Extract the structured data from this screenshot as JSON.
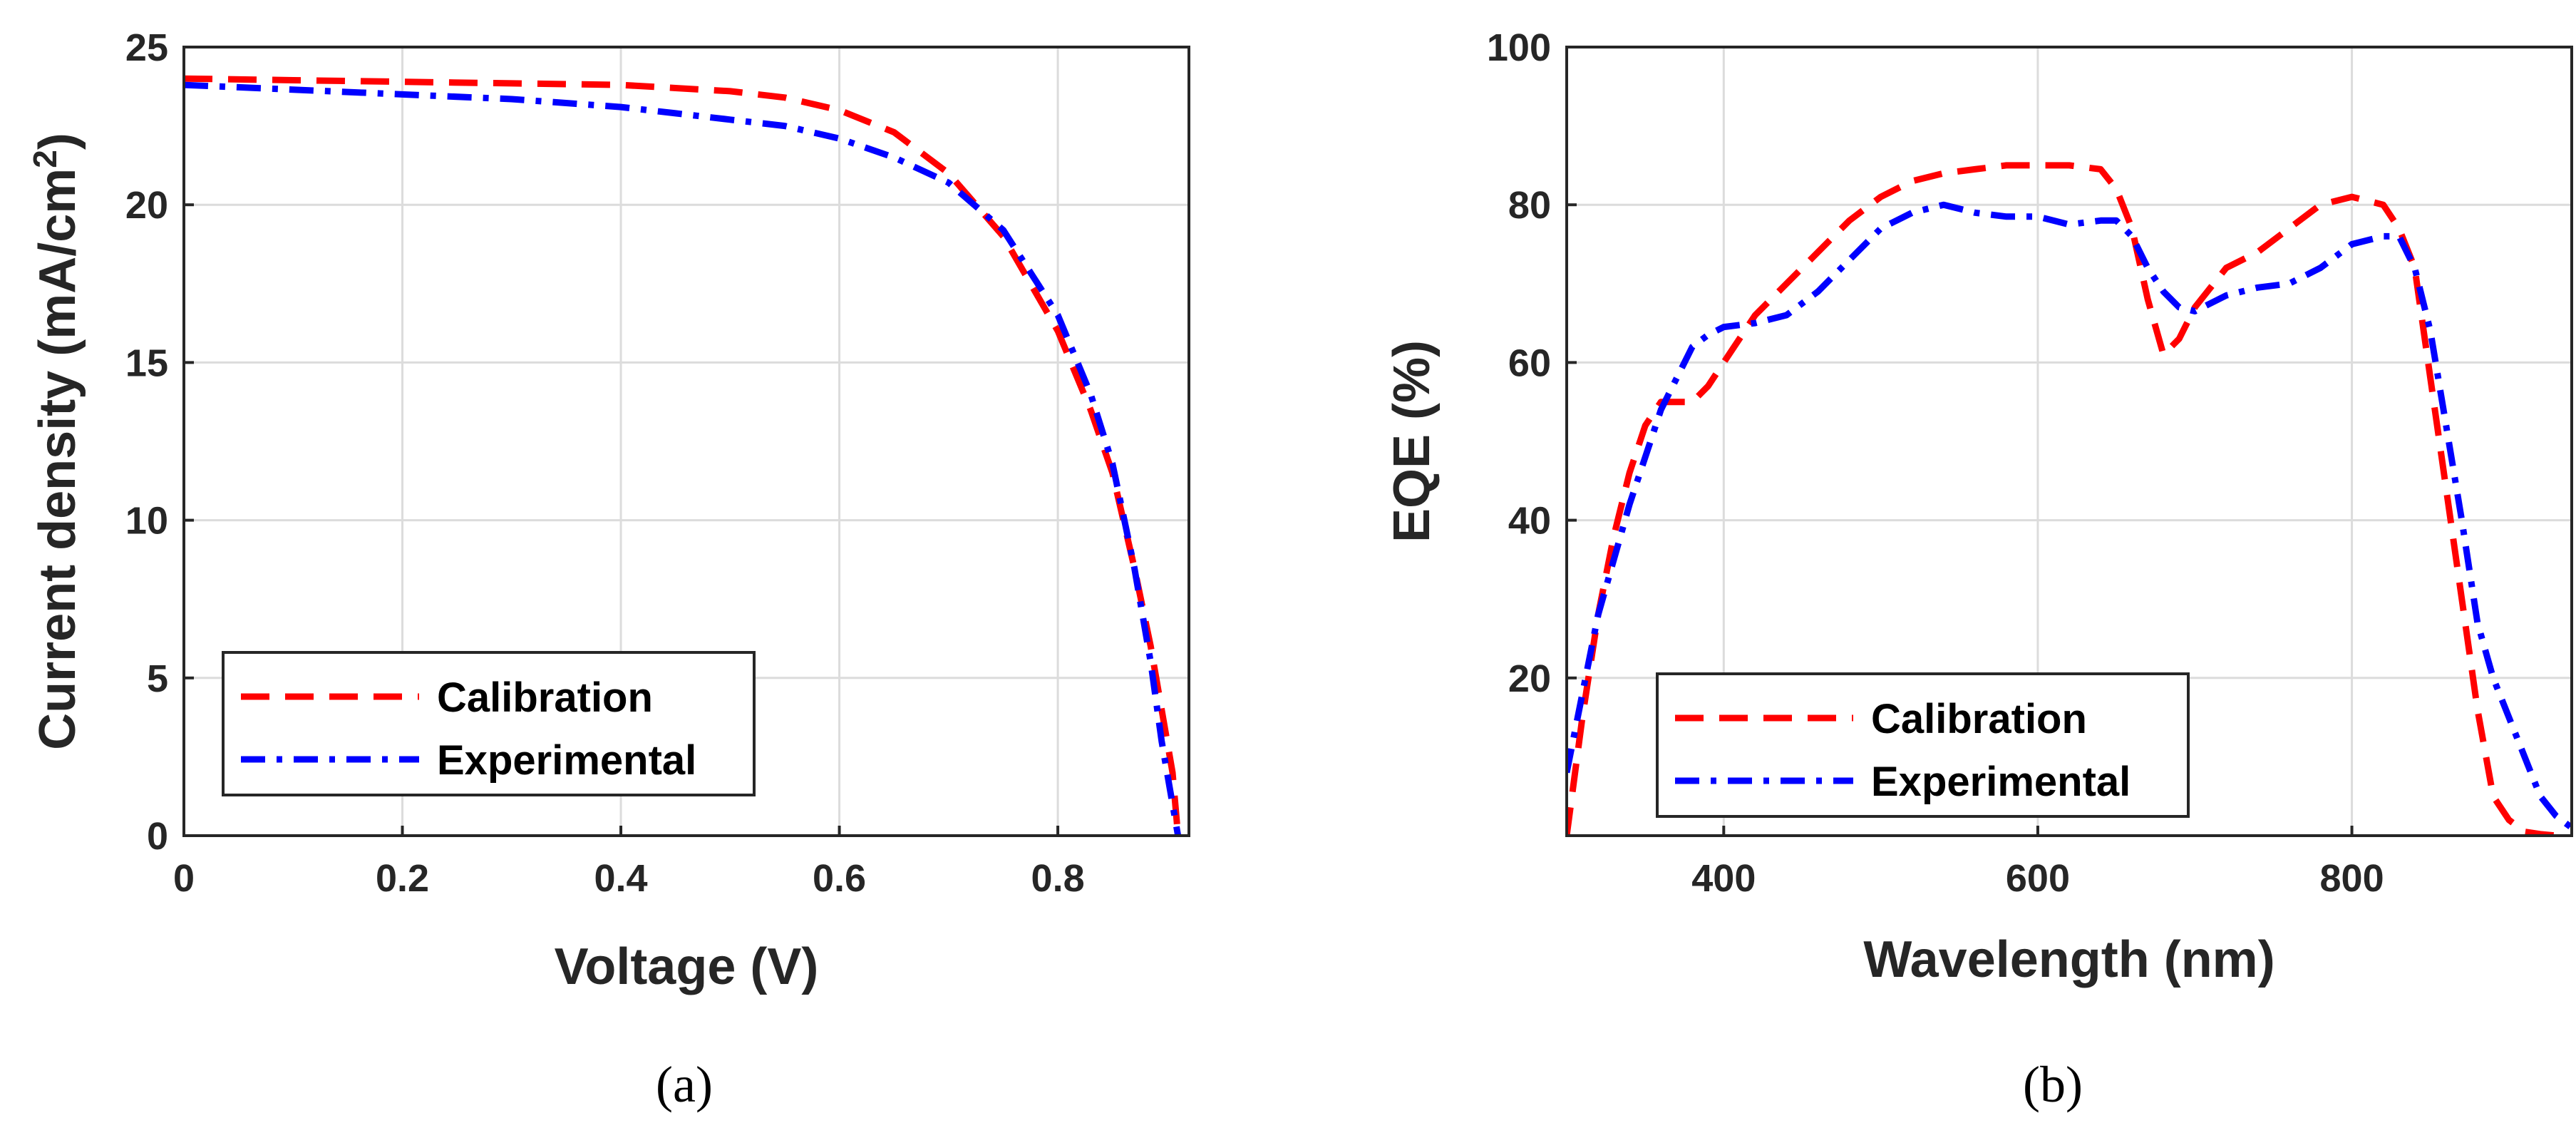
{
  "chart_data": [
    {
      "type": "line",
      "panel": "a",
      "caption": "(a)",
      "xlabel": "Voltage (V)",
      "ylabel": "Current density (mA/cm",
      "ylabel_sup": "2",
      "ylabel_end": ")",
      "xlim": [
        0,
        0.92
      ],
      "ylim": [
        0,
        25
      ],
      "xticks": [
        0,
        0.2,
        0.4,
        0.6,
        0.8
      ],
      "xtick_labels": [
        "0",
        "0.2",
        "0.4",
        "0.6",
        "0.8"
      ],
      "yticks": [
        0,
        5,
        10,
        15,
        20,
        25
      ],
      "ytick_labels": [
        "0",
        "5",
        "10",
        "15",
        "20",
        "25"
      ],
      "grid": true,
      "legend_position": "bottom-left",
      "series": [
        {
          "name": "Calibration",
          "color": "#ff0000",
          "style": "dashed",
          "x": [
            0,
            0.1,
            0.2,
            0.3,
            0.4,
            0.45,
            0.5,
            0.55,
            0.6,
            0.65,
            0.7,
            0.75,
            0.8,
            0.83,
            0.85,
            0.87,
            0.885,
            0.895,
            0.905,
            0.91
          ],
          "y": [
            24.0,
            23.95,
            23.9,
            23.85,
            23.8,
            23.7,
            23.6,
            23.4,
            23.0,
            22.3,
            21.0,
            19.0,
            16.0,
            13.5,
            11.5,
            8.5,
            6.0,
            4.0,
            2.0,
            0
          ]
        },
        {
          "name": "Experimental",
          "color": "#0000ff",
          "style": "dash-dot",
          "x": [
            0,
            0.1,
            0.2,
            0.3,
            0.4,
            0.45,
            0.5,
            0.55,
            0.6,
            0.65,
            0.7,
            0.75,
            0.8,
            0.83,
            0.85,
            0.87,
            0.885,
            0.895,
            0.905,
            0.91
          ],
          "y": [
            23.8,
            23.65,
            23.5,
            23.35,
            23.1,
            22.9,
            22.7,
            22.5,
            22.1,
            21.5,
            20.7,
            19.2,
            16.5,
            14.0,
            11.8,
            8.5,
            5.5,
            3.0,
            1.0,
            0
          ]
        }
      ]
    },
    {
      "type": "line",
      "panel": "b",
      "caption": "(b)",
      "xlabel": "Wavelength (nm)",
      "ylabel": "EQE (%)",
      "xlim": [
        300,
        940
      ],
      "ylim": [
        0,
        100
      ],
      "xticks": [
        400,
        600,
        800
      ],
      "xtick_labels": [
        "400",
        "600",
        "800"
      ],
      "yticks": [
        0,
        20,
        40,
        60,
        80,
        100
      ],
      "ytick_labels": [
        "",
        "20",
        "40",
        "60",
        "80",
        "100"
      ],
      "grid": true,
      "legend_position": "bottom-left",
      "series": [
        {
          "name": "Calibration",
          "color": "#ff0000",
          "style": "dashed",
          "x": [
            300,
            310,
            320,
            330,
            340,
            350,
            360,
            370,
            380,
            390,
            400,
            420,
            440,
            460,
            480,
            500,
            520,
            540,
            560,
            580,
            600,
            620,
            640,
            650,
            660,
            670,
            680,
            690,
            700,
            720,
            740,
            760,
            780,
            800,
            820,
            830,
            840,
            850,
            860,
            870,
            880,
            890,
            900,
            910,
            920,
            930
          ],
          "y": [
            0,
            15,
            28,
            38,
            46,
            52,
            55,
            55,
            55,
            57,
            60,
            66,
            70,
            74,
            78,
            81,
            83,
            84,
            84.5,
            85,
            85,
            85,
            84.5,
            82,
            77,
            68,
            61,
            63,
            67,
            72,
            74,
            77,
            80,
            81,
            80,
            77,
            72,
            58,
            44,
            30,
            16,
            5,
            2,
            0.5,
            0.2,
            0
          ]
        },
        {
          "name": "Experimental",
          "color": "#0000ff",
          "style": "dash-dot",
          "x": [
            300,
            310,
            320,
            330,
            340,
            350,
            360,
            370,
            380,
            390,
            400,
            420,
            440,
            460,
            480,
            500,
            520,
            540,
            560,
            580,
            600,
            620,
            640,
            650,
            660,
            670,
            680,
            690,
            700,
            720,
            740,
            760,
            780,
            800,
            820,
            830,
            840,
            850,
            860,
            870,
            880,
            890,
            900,
            910,
            920,
            930,
            940
          ],
          "y": [
            8,
            18,
            28,
            35,
            42,
            48,
            54,
            58,
            62,
            63.5,
            64.5,
            65,
            66,
            69,
            73,
            77,
            79,
            80,
            79,
            78.5,
            78.5,
            77.5,
            78,
            78,
            76,
            72,
            69,
            67,
            66.5,
            68.5,
            69.5,
            70,
            72,
            75,
            76,
            76,
            72,
            64,
            52,
            40,
            27,
            20,
            15,
            10,
            5,
            2.5,
            1
          ]
        }
      ]
    }
  ]
}
